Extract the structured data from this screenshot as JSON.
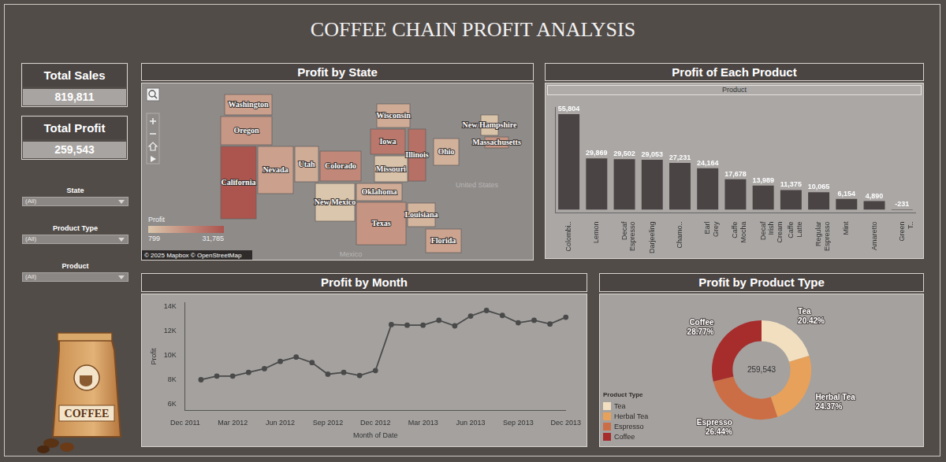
{
  "title": "COFFEE CHAIN PROFIT ANALYSIS",
  "kpis": [
    {
      "label": "Total Sales",
      "value": "819,811"
    },
    {
      "label": "Total Profit",
      "value": "259,543"
    }
  ],
  "filters": [
    {
      "label": "State",
      "value": "(All)"
    },
    {
      "label": "Product Type",
      "value": "(All)"
    },
    {
      "label": "Product",
      "value": "(All)"
    }
  ],
  "logo_text": "COFFEE",
  "map": {
    "title": "Profit by State",
    "states": [
      {
        "name": "Washington",
        "value": 11404
      },
      {
        "name": "Oregon",
        "value": 13508
      },
      {
        "name": "California",
        "value": 31785
      },
      {
        "name": "Nevada",
        "value": 11091
      },
      {
        "name": "Utah",
        "value": 7981
      },
      {
        "name": "Colorado",
        "value": 17743
      },
      {
        "name": "New Mexico",
        "value": 799
      },
      {
        "name": "Oklahoma",
        "value": 7836
      },
      {
        "name": "Texas",
        "value": 14283
      },
      {
        "name": "Louisiana",
        "value": 5744
      },
      {
        "name": "Missouri",
        "value": 1851
      },
      {
        "name": "Iowa",
        "value": 22212
      },
      {
        "name": "Illinois",
        "value": 24200
      },
      {
        "name": "Wisconsin",
        "value": 8004
      },
      {
        "name": "Ohio",
        "value": 6412
      },
      {
        "name": "Florida",
        "value": 10289
      },
      {
        "name": "New Hampshire",
        "value": 2016
      },
      {
        "name": "Massachusetts",
        "value": 14700
      }
    ],
    "colorbar": {
      "label": "Profit",
      "range": [
        799,
        31785
      ],
      "ticks": [
        799,
        {
          "value": 31785,
          "label": "31,785"
        }
      ]
    },
    "labels": [
      "United States",
      "Mexico"
    ],
    "credit": "© 2025 Mapbox © OpenStreetMap"
  },
  "chart_data": [
    {
      "type": "bar",
      "title": "Profit of Each Product",
      "subtitle": "Product",
      "categories": [
        "Colombi..",
        "Lemon",
        "Decaf Espresso",
        "Darjeeling",
        "Chamo..",
        "Earl Grey",
        "Caffe Mocha",
        "Decaf Irish Cream",
        "Caffe Latte",
        "Regular Espresso",
        "Mint",
        "Amaretto",
        "Green T.."
      ],
      "values": [
        55804,
        29869,
        29502,
        29053,
        27231,
        24164,
        17678,
        13989,
        11375,
        10065,
        6154,
        4890,
        -231
      ],
      "value_labels": [
        "55,804",
        "29,869",
        "29,502",
        "29,053",
        "27,231",
        "24,164",
        "17,678",
        "13,989",
        "11,375",
        "10,065",
        "6,154",
        "4,890",
        "-231"
      ],
      "color": "#4a4544",
      "ylim": [
        -2000,
        60000
      ],
      "tick_labels": "x",
      "data_labels": true,
      "grid": false
    },
    {
      "type": "line",
      "title": "Profit by Month",
      "x_label": "Month of Date",
      "y_label": "Profit",
      "categories": [
        "Dec 2011",
        null,
        null,
        "Mar 2012",
        null,
        null,
        "Jun 2012",
        null,
        null,
        "Sep 2012",
        null,
        null,
        "Dec 2012",
        null,
        null,
        "Mar 2013",
        null,
        null,
        "Jun 2013",
        null,
        null,
        "Sep 2013",
        null,
        null,
        "Dec 2013"
      ],
      "values": [
        null,
        8000,
        8300,
        8300,
        8600,
        8900,
        9500,
        9850,
        9400,
        8450,
        8600,
        8350,
        8750,
        12500,
        12450,
        12450,
        12850,
        12400,
        13200,
        13650,
        13250,
        12650,
        12850,
        12550,
        13100
      ],
      "color": "#4a4a4a",
      "marker": "circle",
      "line_style": "solid",
      "ylim": [
        5500,
        14300
      ],
      "yticks": [
        {
          "value": 6000,
          "label": "6K"
        },
        {
          "value": 8000,
          "label": "8K"
        },
        {
          "value": 10000,
          "label": "10K"
        },
        {
          "value": 12000,
          "label": "12K"
        },
        {
          "value": 14000,
          "label": "14K"
        }
      ],
      "grid": false
    },
    {
      "type": "doughnut",
      "title": "Profit by Product Type",
      "categories": [
        "Tea",
        "Herbal Tea",
        "Espresso",
        "Coffee"
      ],
      "values": [
        20.42,
        24.37,
        26.44,
        28.77
      ],
      "value_labels": [
        "20.42%",
        "24.37%",
        "26.44%",
        "28.77%"
      ],
      "colors": [
        "#f1dfc0",
        "#e8a15a",
        "#cc6e45",
        "#a72d2d"
      ],
      "legend": "bottom-left",
      "legend_title": "Product Type",
      "center_label": "259,543",
      "data_labels": true
    }
  ]
}
